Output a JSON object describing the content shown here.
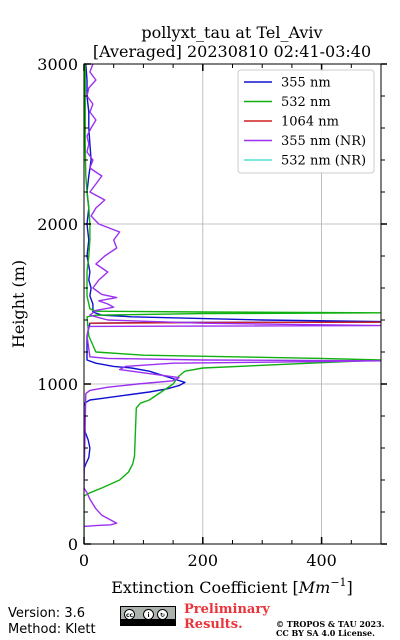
{
  "chart_data": {
    "type": "line",
    "title": "pollyxt_tau at Tel_Aviv",
    "subtitle": "[Averaged] 20230810 02:41-03:40",
    "xlabel": "Extinction Coefficient [",
    "xlabel_unit": "Mm",
    "xlabel_exp": "−1",
    "xlabel_close": "]",
    "ylabel": "Height (m)",
    "xlim": [
      0,
      500
    ],
    "ylim": [
      0,
      3000
    ],
    "x_ticks": [
      0,
      200,
      400
    ],
    "y_ticks": [
      0,
      1000,
      2000,
      3000
    ],
    "grid": true,
    "legend_position": "top-right",
    "series": [
      {
        "name": "355 nm",
        "color": "#1010d0",
        "points": [
          [
            0,
            470
          ],
          [
            3,
            500
          ],
          [
            8,
            540
          ],
          [
            10,
            600
          ],
          [
            7,
            650
          ],
          [
            2,
            700
          ],
          [
            0,
            760
          ],
          [
            0,
            860
          ],
          [
            1,
            880
          ],
          [
            10,
            900
          ],
          [
            30,
            910
          ],
          [
            70,
            930
          ],
          [
            110,
            950
          ],
          [
            140,
            970
          ],
          [
            160,
            990
          ],
          [
            170,
            1010
          ],
          [
            110,
            1080
          ],
          [
            80,
            1100
          ],
          [
            50,
            1110
          ],
          [
            20,
            1130
          ],
          [
            5,
            1150
          ],
          [
            5,
            1300
          ],
          [
            10,
            1380
          ],
          [
            150,
            1385
          ],
          [
            500,
            1387
          ],
          [
            500,
            1390
          ],
          [
            300,
            1400
          ],
          [
            80,
            1420
          ],
          [
            30,
            1430
          ],
          [
            15,
            1450
          ],
          [
            15,
            1500
          ],
          [
            10,
            1550
          ],
          [
            12,
            1600
          ],
          [
            8,
            1650
          ],
          [
            10,
            1700
          ],
          [
            5,
            1800
          ],
          [
            8,
            1900
          ],
          [
            5,
            2000
          ],
          [
            8,
            2100
          ],
          [
            5,
            2200
          ],
          [
            8,
            2300
          ],
          [
            12,
            2400
          ],
          [
            10,
            2500
          ],
          [
            8,
            2600
          ],
          [
            8,
            2700
          ],
          [
            5,
            2800
          ],
          [
            5,
            2900
          ],
          [
            3,
            3000
          ]
        ]
      },
      {
        "name": "532 nm",
        "color": "#10b010",
        "points": [
          [
            0,
            0
          ],
          [
            0,
            300
          ],
          [
            10,
            320
          ],
          [
            30,
            350
          ],
          [
            60,
            400
          ],
          [
            75,
            450
          ],
          [
            82,
            500
          ],
          [
            85,
            550
          ],
          [
            86,
            650
          ],
          [
            87,
            750
          ],
          [
            88,
            850
          ],
          [
            95,
            880
          ],
          [
            110,
            900
          ],
          [
            130,
            950
          ],
          [
            150,
            1000
          ],
          [
            160,
            1050
          ],
          [
            170,
            1080
          ],
          [
            200,
            1100
          ],
          [
            500,
            1150
          ],
          [
            400,
            1160
          ],
          [
            100,
            1180
          ],
          [
            20,
            1200
          ],
          [
            8,
            1300
          ],
          [
            5,
            1420
          ],
          [
            20,
            1430
          ],
          [
            200,
            1440
          ],
          [
            500,
            1445
          ],
          [
            200,
            1450
          ],
          [
            20,
            1455
          ],
          [
            10,
            1470
          ],
          [
            5,
            1550
          ],
          [
            5,
            1700
          ],
          [
            8,
            1800
          ],
          [
            10,
            1900
          ],
          [
            10,
            2000
          ],
          [
            8,
            2100
          ],
          [
            5,
            2200
          ],
          [
            3,
            2300
          ],
          [
            2,
            2500
          ],
          [
            2,
            2700
          ],
          [
            2,
            3000
          ]
        ]
      },
      {
        "name": "1064 nm",
        "color": "#d02020",
        "points": [
          [
            10,
            1380
          ],
          [
            200,
            1384
          ],
          [
            500,
            1386
          ]
        ]
      },
      {
        "name": "355 nm (NR)",
        "color": "#9b30f0",
        "points": [
          [
            0,
            110
          ],
          [
            20,
            115
          ],
          [
            45,
            120
          ],
          [
            55,
            130
          ],
          [
            45,
            150
          ],
          [
            30,
            180
          ],
          [
            20,
            220
          ],
          [
            10,
            280
          ],
          [
            5,
            320
          ],
          [
            0,
            350
          ],
          [
            0,
            380
          ],
          [
            3,
            940
          ],
          [
            10,
            960
          ],
          [
            40,
            980
          ],
          [
            90,
            1000
          ],
          [
            150,
            1020
          ],
          [
            160,
            1040
          ],
          [
            120,
            1060
          ],
          [
            80,
            1080
          ],
          [
            60,
            1090
          ],
          [
            70,
            1110
          ],
          [
            150,
            1130
          ],
          [
            400,
            1140
          ],
          [
            500,
            1145
          ],
          [
            200,
            1150
          ],
          [
            40,
            1160
          ],
          [
            10,
            1170
          ],
          [
            5,
            1300
          ],
          [
            8,
            1360
          ],
          [
            200,
            1362
          ],
          [
            500,
            1365
          ],
          [
            200,
            1380
          ],
          [
            40,
            1400
          ],
          [
            20,
            1420
          ],
          [
            10,
            1430
          ],
          [
            20,
            1460
          ],
          [
            50,
            1480
          ],
          [
            40,
            1500
          ],
          [
            25,
            1520
          ],
          [
            55,
            1540
          ],
          [
            30,
            1560
          ],
          [
            15,
            1600
          ],
          [
            25,
            1650
          ],
          [
            40,
            1700
          ],
          [
            20,
            1750
          ],
          [
            35,
            1800
          ],
          [
            55,
            1850
          ],
          [
            50,
            1900
          ],
          [
            60,
            1950
          ],
          [
            25,
            2000
          ],
          [
            12,
            2050
          ],
          [
            20,
            2100
          ],
          [
            35,
            2150
          ],
          [
            10,
            2200
          ],
          [
            20,
            2250
          ],
          [
            30,
            2300
          ],
          [
            10,
            2350
          ],
          [
            15,
            2400
          ],
          [
            5,
            2450
          ],
          [
            8,
            2500
          ],
          [
            5,
            2550
          ],
          [
            12,
            2600
          ],
          [
            20,
            2650
          ],
          [
            10,
            2700
          ],
          [
            15,
            2750
          ],
          [
            5,
            2800
          ],
          [
            8,
            2850
          ],
          [
            20,
            2900
          ],
          [
            10,
            2950
          ],
          [
            15,
            3000
          ]
        ]
      },
      {
        "name": "532 nm (NR)",
        "color": "#50e0d0",
        "points": []
      }
    ]
  },
  "footer": {
    "version": "Version: 3.6",
    "method": "Method: Klett",
    "preliminary_line1": "Preliminary",
    "preliminary_line2": "Results.",
    "copyright_line1": "© TROPOS & TAU 2023.",
    "copyright_line2": "CC BY SA 4.0 License."
  }
}
